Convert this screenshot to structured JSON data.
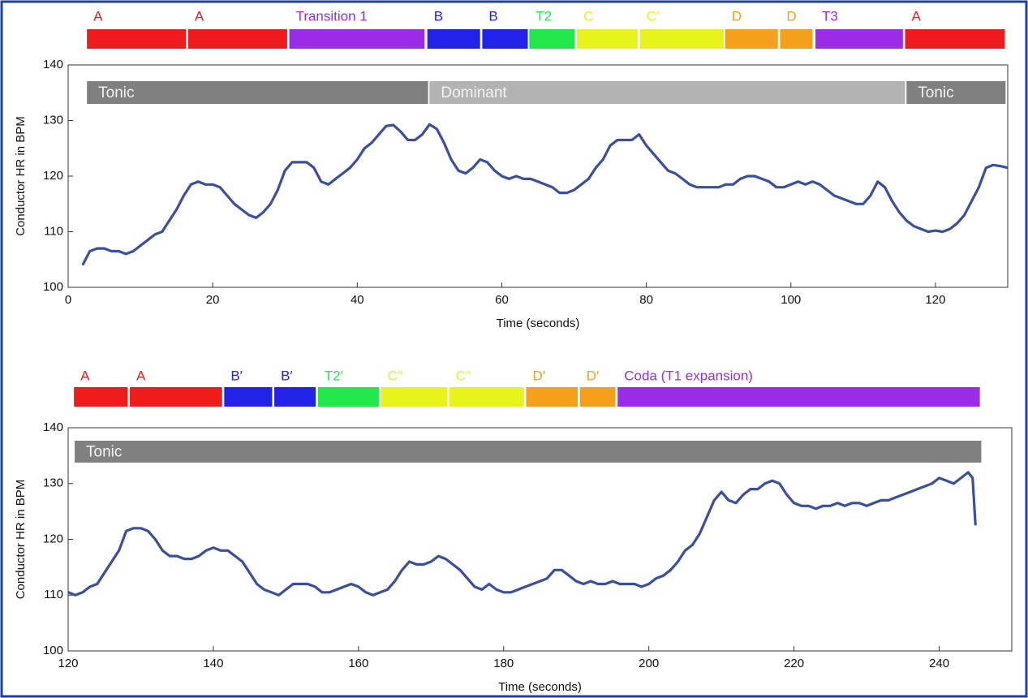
{
  "chart_data": [
    {
      "type": "line",
      "ylabel": "Conductor HR in BPM",
      "xlabel": "Time (seconds)",
      "color": "#3a4fa0",
      "xlim": [
        0,
        130
      ],
      "ylim": [
        100,
        140
      ],
      "xticks": [
        0,
        20,
        40,
        60,
        80,
        100,
        120
      ],
      "yticks": [
        100,
        110,
        120,
        130,
        140
      ],
      "sections": [
        {
          "label": "A",
          "start": 2.6,
          "end": 16.3,
          "color": "#ee1c1c"
        },
        {
          "label": "A",
          "start": 16.6,
          "end": 30.3,
          "color": "#ee1c1c"
        },
        {
          "label": "Transition 1",
          "start": 30.6,
          "end": 49.3,
          "color": "#9a2be6"
        },
        {
          "label": "B",
          "start": 49.7,
          "end": 57.0,
          "color": "#2222e8"
        },
        {
          "label": "B",
          "start": 57.3,
          "end": 63.6,
          "color": "#2222e8"
        },
        {
          "label": "T2",
          "start": 63.8,
          "end": 70.1,
          "color": "#22e84a"
        },
        {
          "label": "C",
          "start": 70.4,
          "end": 78.8,
          "color": "#e8f21c"
        },
        {
          "label": "C′",
          "start": 79.1,
          "end": 90.7,
          "color": "#e8f21c"
        },
        {
          "label": "D",
          "start": 90.9,
          "end": 98.2,
          "color": "#f5a01a"
        },
        {
          "label": "D",
          "start": 98.5,
          "end": 103.0,
          "color": "#f5a01a"
        },
        {
          "label": "T3",
          "start": 103.4,
          "end": 115.5,
          "color": "#9a2be6"
        },
        {
          "label": "A",
          "start": 115.8,
          "end": 129.6,
          "color": "#ee1c1c"
        }
      ],
      "keys": [
        {
          "label": "Tonic",
          "start": 2.6,
          "end": 49.8,
          "color": "#808080"
        },
        {
          "label": "Dominant",
          "start": 50.0,
          "end": 115.8,
          "color": "#b3b3b3"
        },
        {
          "label": "Tonic",
          "start": 116.0,
          "end": 129.7,
          "color": "#808080"
        }
      ],
      "x": [
        2,
        3,
        4,
        5,
        6,
        7,
        8,
        9,
        10,
        11,
        12,
        13,
        14,
        15,
        16,
        17,
        18,
        19,
        20,
        21,
        22,
        23,
        24,
        25,
        26,
        27,
        28,
        29,
        30,
        31,
        32,
        33,
        34,
        35,
        36,
        37,
        38,
        39,
        40,
        41,
        42,
        43,
        44,
        45,
        46,
        47,
        48,
        49,
        50,
        51,
        52,
        53,
        54,
        55,
        56,
        57,
        58,
        59,
        60,
        61,
        62,
        63,
        64,
        65,
        66,
        67,
        68,
        69,
        70,
        71,
        72,
        73,
        74,
        75,
        76,
        77,
        78,
        79,
        80,
        81,
        82,
        83,
        84,
        85,
        86,
        87,
        88,
        89,
        90,
        91,
        92,
        93,
        94,
        95,
        96,
        97,
        98,
        99,
        100,
        101,
        102,
        103,
        104,
        105,
        106,
        107,
        108,
        109,
        110,
        111,
        112,
        113,
        114,
        115,
        116,
        117,
        118,
        119,
        120,
        121,
        122,
        123,
        124,
        125,
        126,
        127,
        128,
        129,
        130
      ],
      "values": [
        104,
        106.5,
        107,
        107,
        106.5,
        106.5,
        106,
        106.5,
        107.5,
        108.5,
        109.5,
        110,
        112,
        114,
        116.5,
        118.5,
        119,
        118.5,
        118.5,
        118,
        116.5,
        115,
        114,
        113,
        112.5,
        113.5,
        115,
        117.5,
        121,
        122.5,
        122.5,
        122.5,
        121.5,
        119,
        118.5,
        119.5,
        120.5,
        121.5,
        123,
        125,
        126,
        127.5,
        129,
        129.2,
        128,
        126.5,
        126.5,
        127.5,
        129.3,
        128.5,
        126,
        123,
        121,
        120.5,
        121.5,
        123,
        122.5,
        121,
        120,
        119.5,
        120,
        119.5,
        119.5,
        119,
        118.5,
        118,
        117,
        117,
        117.5,
        118.5,
        119.5,
        121.5,
        123,
        125.5,
        126.5,
        126.5,
        126.5,
        127.5,
        125.5,
        124,
        122.5,
        121,
        120.5,
        119.5,
        118.5,
        118,
        118,
        118,
        118,
        118.5,
        118.5,
        119.5,
        120,
        120,
        119.5,
        119,
        118,
        118,
        118.5,
        119,
        118.5,
        119,
        118.5,
        117.5,
        116.5,
        116,
        115.5,
        115,
        115,
        116.5,
        119,
        118,
        115.5,
        113.5,
        112,
        111,
        110.5,
        110,
        110.2,
        110,
        110.5,
        111.5,
        113,
        115.5,
        118,
        121.5,
        122,
        121.8,
        121.5
      ]
    },
    {
      "type": "line",
      "ylabel": "Conductor HR in BPM",
      "xlabel": "Time (seconds)",
      "color": "#3a4fa0",
      "xlim": [
        120,
        250
      ],
      "ylim": [
        100,
        140
      ],
      "xticks": [
        120,
        140,
        160,
        180,
        200,
        220,
        240
      ],
      "yticks": [
        100,
        110,
        120,
        130,
        140
      ],
      "sections": [
        {
          "label": "A",
          "start": 120.8,
          "end": 128.2,
          "color": "#ee1c1c"
        },
        {
          "label": "A",
          "start": 128.5,
          "end": 141.2,
          "color": "#ee1c1c"
        },
        {
          "label": "B′",
          "start": 141.5,
          "end": 148.1,
          "color": "#2222e8"
        },
        {
          "label": "B′",
          "start": 148.4,
          "end": 154.1,
          "color": "#2222e8"
        },
        {
          "label": "T2′",
          "start": 154.4,
          "end": 162.8,
          "color": "#22e84a"
        },
        {
          "label": "C″",
          "start": 163.1,
          "end": 172.2,
          "color": "#e8f21c"
        },
        {
          "label": "C″",
          "start": 172.5,
          "end": 182.8,
          "color": "#e8f21c"
        },
        {
          "label": "D′",
          "start": 183.1,
          "end": 190.2,
          "color": "#f5a01a"
        },
        {
          "label": "D′",
          "start": 190.5,
          "end": 195.4,
          "color": "#f5a01a"
        },
        {
          "label": "Coda (T1 expansion)",
          "start": 195.7,
          "end": 245.6,
          "color": "#9a2be6"
        }
      ],
      "keys": [
        {
          "label": "Tonic",
          "start": 120.9,
          "end": 245.8,
          "color": "#808080"
        }
      ],
      "x": [
        120,
        121,
        122,
        123,
        124,
        125,
        126,
        127,
        128,
        129,
        130,
        131,
        132,
        133,
        134,
        135,
        136,
        137,
        138,
        139,
        140,
        141,
        142,
        143,
        144,
        145,
        146,
        147,
        148,
        149,
        150,
        151,
        152,
        153,
        154,
        155,
        156,
        157,
        158,
        159,
        160,
        161,
        162,
        163,
        164,
        165,
        166,
        167,
        168,
        169,
        170,
        171,
        172,
        173,
        174,
        175,
        176,
        177,
        178,
        179,
        180,
        181,
        182,
        183,
        184,
        185,
        186,
        187,
        188,
        189,
        190,
        191,
        192,
        193,
        194,
        195,
        196,
        197,
        198,
        199,
        200,
        201,
        202,
        203,
        204,
        205,
        206,
        207,
        208,
        209,
        210,
        211,
        212,
        213,
        214,
        215,
        216,
        217,
        218,
        219,
        220,
        221,
        222,
        223,
        224,
        225,
        226,
        227,
        228,
        229,
        230,
        231,
        232,
        233,
        234,
        235,
        236,
        237,
        238,
        239,
        240,
        241,
        242,
        243,
        244,
        244.6,
        245
      ],
      "values": [
        110.5,
        110,
        110.5,
        111.5,
        112,
        114,
        116,
        118,
        121.5,
        122,
        122,
        121.5,
        120,
        118,
        117,
        117,
        116.5,
        116.5,
        117,
        118,
        118.5,
        118,
        118,
        117,
        116,
        114,
        112,
        111,
        110.5,
        110,
        111,
        112,
        112,
        112,
        111.5,
        110.5,
        110.5,
        111,
        111.5,
        112,
        111.5,
        110.5,
        110,
        110.5,
        111,
        112.5,
        114.5,
        116,
        115.5,
        115.5,
        116,
        117,
        116.5,
        115.5,
        114.5,
        113,
        111.5,
        111,
        112,
        111,
        110.5,
        110.5,
        111,
        111.5,
        112,
        112.5,
        113,
        114.5,
        114.5,
        113.5,
        112.5,
        112,
        112.5,
        112,
        112,
        112.5,
        112,
        112,
        112,
        111.5,
        112,
        113,
        113.5,
        114.5,
        116,
        118,
        119,
        121,
        124,
        127,
        128.5,
        127,
        126.5,
        128,
        129,
        129,
        130,
        130.5,
        130,
        128,
        126.5,
        126,
        126,
        125.5,
        126,
        126,
        126.5,
        126,
        126.5,
        126.5,
        126,
        126.5,
        127,
        127,
        127.5,
        128,
        128.5,
        129,
        129.5,
        130,
        131,
        130.5,
        130,
        131,
        132,
        131,
        122.5
      ]
    }
  ]
}
